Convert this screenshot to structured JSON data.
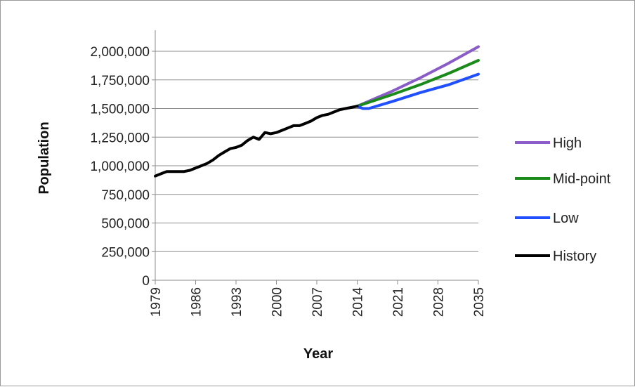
{
  "chart_data": {
    "type": "line",
    "title": "",
    "xlabel": "Year",
    "ylabel": "Population",
    "xlim": [
      1979,
      2035
    ],
    "ylim": [
      0,
      2000000
    ],
    "x_ticks": [
      "1979",
      "1986",
      "1993",
      "2000",
      "2007",
      "2014",
      "2021",
      "2028",
      "2035"
    ],
    "y_ticks": [
      "0",
      "250,000",
      "500,000",
      "750,000",
      "1,000,000",
      "1,250,000",
      "1,500,000",
      "1,750,000",
      "2,000,000"
    ],
    "grid": "horizontal",
    "legend_position": "right",
    "series": [
      {
        "name": "High",
        "color": "#8a5cc7",
        "x": [
          2014,
          2020,
          2025,
          2030,
          2035
        ],
        "y": [
          1520000,
          1650000,
          1770000,
          1900000,
          2040000
        ]
      },
      {
        "name": "Mid-point",
        "color": "#1a8a1a",
        "x": [
          2014,
          2020,
          2025,
          2030,
          2035
        ],
        "y": [
          1520000,
          1620000,
          1710000,
          1810000,
          1920000
        ]
      },
      {
        "name": "Low",
        "color": "#1f4fff",
        "x": [
          2014,
          2015,
          2016,
          2020,
          2025,
          2030,
          2035
        ],
        "y": [
          1520000,
          1500000,
          1500000,
          1560000,
          1640000,
          1710000,
          1800000
        ]
      },
      {
        "name": "History",
        "color": "#000000",
        "x": [
          1979,
          1980,
          1981,
          1982,
          1983,
          1984,
          1985,
          1986,
          1987,
          1988,
          1989,
          1990,
          1991,
          1992,
          1993,
          1994,
          1995,
          1996,
          1997,
          1998,
          1999,
          2000,
          2001,
          2002,
          2003,
          2004,
          2005,
          2006,
          2007,
          2008,
          2009,
          2010,
          2011,
          2012,
          2013,
          2014
        ],
        "y": [
          910000,
          930000,
          950000,
          950000,
          950000,
          950000,
          960000,
          980000,
          1000000,
          1020000,
          1050000,
          1090000,
          1120000,
          1150000,
          1160000,
          1180000,
          1220000,
          1250000,
          1230000,
          1290000,
          1280000,
          1290000,
          1310000,
          1330000,
          1350000,
          1350000,
          1370000,
          1390000,
          1420000,
          1440000,
          1450000,
          1470000,
          1490000,
          1500000,
          1510000,
          1520000
        ]
      }
    ]
  }
}
